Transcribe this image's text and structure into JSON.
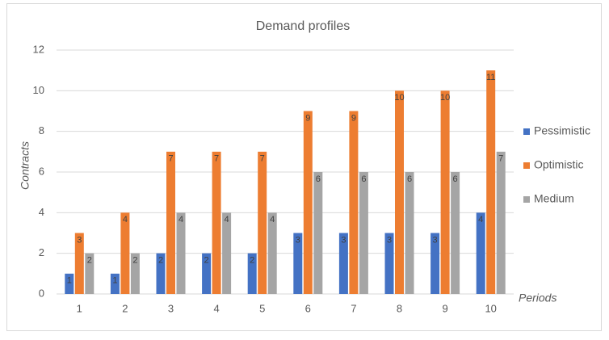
{
  "chart_data": {
    "type": "bar",
    "title": "Demand profiles",
    "x_label": "Periods",
    "y_label": "Contracts",
    "categories": [
      "1",
      "2",
      "3",
      "4",
      "5",
      "6",
      "7",
      "8",
      "9",
      "10"
    ],
    "series": [
      {
        "name": "Pessimistic",
        "color": "#4472c4",
        "values": [
          1,
          1,
          2,
          2,
          2,
          3,
          3,
          3,
          3,
          4
        ]
      },
      {
        "name": "Optimistic",
        "color": "#ed7d31",
        "values": [
          3,
          4,
          7,
          7,
          7,
          9,
          9,
          10,
          10,
          11
        ]
      },
      {
        "name": "Medium",
        "color": "#a5a5a5",
        "values": [
          2,
          2,
          4,
          4,
          4,
          6,
          6,
          6,
          6,
          7
        ]
      }
    ],
    "ylim": [
      0,
      12
    ],
    "yticks": [
      0,
      2,
      4,
      6,
      8,
      10,
      12
    ],
    "grid": true,
    "legend": "right"
  }
}
